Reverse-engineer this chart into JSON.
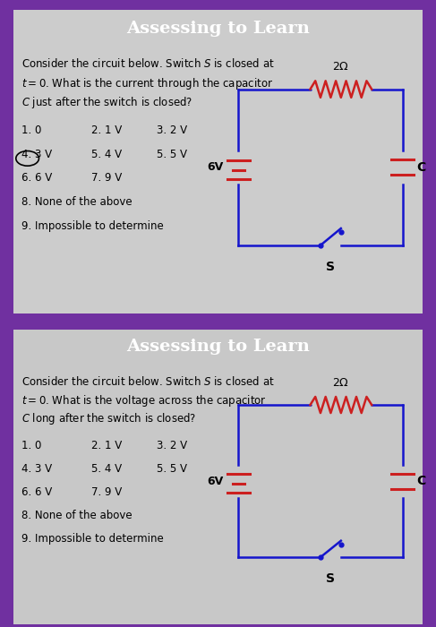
{
  "header1": "Assessing to Learn",
  "header2": "Assessing to Learn",
  "header_bg": "#6B2FAE",
  "header_text_color": "#FFFFFF",
  "panel_bg": "#E8E8E8",
  "panel2_bg": "#E0E0E0",
  "outer_bg": "#7030A0",
  "question1": "Consider the circuit below. Switch $S$ is closed at\n$t = 0$. What is the current through the capacitor\n$C$ just after the switch is closed?",
  "question2": "Consider the circuit below. Switch $S$ is closed at\n$t = 0$. What is the voltage across the capacitor\n$C$ long after the switch is closed?",
  "opts1": [
    [
      "1. 0",
      "2. 1 V",
      "3. 2 V"
    ],
    [
      "4. 3 V",
      "5. 4 V",
      "5. 5 V"
    ],
    [
      "6. 6 V",
      "7. 9 V"
    ],
    [
      "8. None of the above"
    ],
    [
      "9. Impossible to determine"
    ]
  ],
  "opts2": [
    [
      "1. 0",
      "2. 1 V",
      "3. 2 V"
    ],
    [
      "4. 3 V",
      "5. 4 V",
      "5. 5 V"
    ],
    [
      "6. 6 V",
      "7. 9 V"
    ],
    [
      "8. None of the above"
    ],
    [
      "9. Impossible to determine"
    ]
  ],
  "circle_option": "4. 3 V",
  "panel1_has_circle": true,
  "circuit_line_color": "#1515CC",
  "resistor_color": "#CC2020",
  "battery_color": "#CC2020",
  "capacitor_color": "#CC2020",
  "switch_color": "#1515CC"
}
